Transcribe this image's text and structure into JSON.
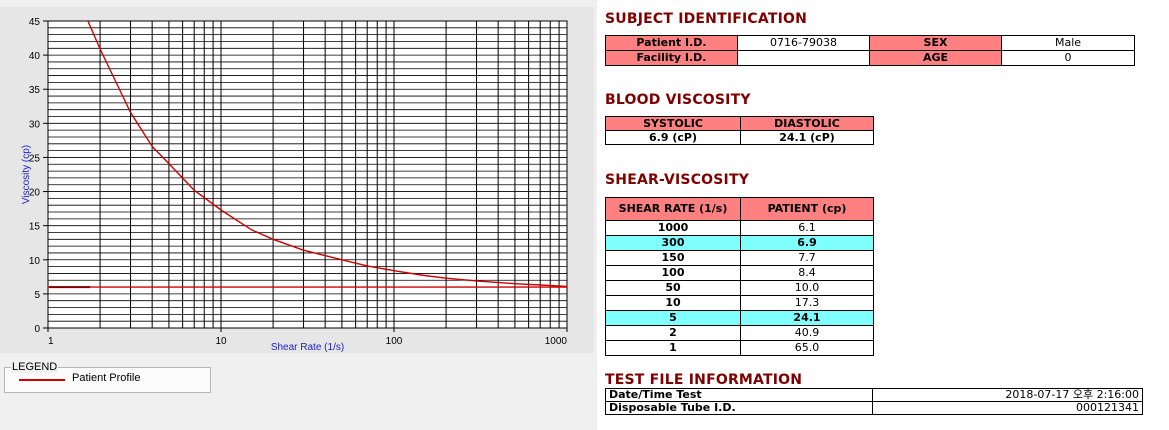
{
  "chart_data": {
    "type": "line",
    "x_scale": "log",
    "xlim": [
      1,
      1000
    ],
    "ylim": [
      0,
      45
    ],
    "xlabel": "Shear Rate (1/s)",
    "ylabel": "Viscosity (cp)",
    "x_ticks": [
      "1",
      "10",
      "100",
      "1000"
    ],
    "y_ticks": [
      "0",
      "5",
      "10",
      "15",
      "20",
      "25",
      "30",
      "35",
      "40",
      "45"
    ],
    "grid": true,
    "series": [
      {
        "name": "Patient Profile",
        "color": "#d00000",
        "x": [
          1.7,
          2,
          3,
          4,
          5,
          7,
          10,
          15,
          20,
          30,
          50,
          70,
          100,
          150,
          200,
          300,
          500,
          700,
          1000
        ],
        "y": [
          45,
          40.9,
          31.6,
          26.6,
          24.1,
          20.2,
          17.3,
          14.4,
          13.0,
          11.4,
          10.0,
          9.1,
          8.4,
          7.7,
          7.3,
          6.9,
          6.5,
          6.3,
          6.1
        ]
      },
      {
        "name": "",
        "color": "#d00000",
        "x": [
          1,
          1000
        ],
        "y": [
          6,
          6
        ]
      }
    ]
  },
  "legend": {
    "title": "LEGEND",
    "label": "Patient Profile"
  },
  "subject": {
    "title": "SUBJECT IDENTIFICATION",
    "patient_id_label": "Patient I.D.",
    "patient_id_value": "0716-79038",
    "sex_label": "SEX",
    "sex_value": "Male",
    "facility_id_label": "Facility I.D.",
    "facility_id_value": "",
    "age_label": "AGE",
    "age_value": "0"
  },
  "blood_viscosity": {
    "title": "BLOOD VISCOSITY",
    "systolic_label": "SYSTOLIC",
    "diastolic_label": "DIASTOLIC",
    "systolic_value": "6.9 (cP)",
    "diastolic_value": "24.1 (cP)"
  },
  "shear_viscosity": {
    "title": "SHEAR-VISCOSITY",
    "col1": "SHEAR RATE (1/s)",
    "col2": "PATIENT (cp)",
    "highlight_color": "#80ffff",
    "rows": [
      {
        "rate": "1000",
        "value": "6.1",
        "highlight": false
      },
      {
        "rate": "300",
        "value": "6.9",
        "highlight": true
      },
      {
        "rate": "150",
        "value": "7.7",
        "highlight": false
      },
      {
        "rate": "100",
        "value": "8.4",
        "highlight": false
      },
      {
        "rate": "50",
        "value": "10.0",
        "highlight": false
      },
      {
        "rate": "10",
        "value": "17.3",
        "highlight": false
      },
      {
        "rate": "5",
        "value": "24.1",
        "highlight": true
      },
      {
        "rate": "2",
        "value": "40.9",
        "highlight": false
      },
      {
        "rate": "1",
        "value": "65.0",
        "highlight": false
      }
    ]
  },
  "test_file": {
    "title": "TEST FILE INFORMATION",
    "datetime_label": "Date/Time Test",
    "datetime_value": "2018-07-17  오후 2:16:00",
    "tube_label": "Disposable Tube I.D.",
    "tube_value": "000121341"
  }
}
